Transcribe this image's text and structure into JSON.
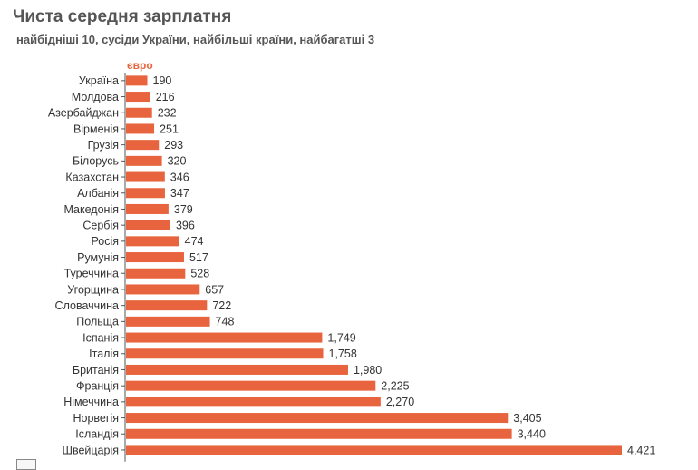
{
  "header": {
    "title": "Чиста середня зарплатня",
    "subtitle": "найбідніші 10, сусіди України, найбільші країни, найбагатші 3"
  },
  "chart_data": {
    "type": "bar",
    "orientation": "horizontal",
    "unit_label": "євро",
    "categories": [
      "Україна",
      "Молдова",
      "Азербайджан",
      "Вірменія",
      "Грузія",
      "Білорусь",
      "Казахстан",
      "Албанія",
      "Македонія",
      "Сербія",
      "Росія",
      "Румунія",
      "Туреччина",
      "Угорщина",
      "Словаччина",
      "Польща",
      "Іспанія",
      "Італія",
      "Британія",
      "Франція",
      "Німеччина",
      "Норвегія",
      "Ісландія",
      "Швейцарія"
    ],
    "values": [
      190,
      216,
      232,
      251,
      293,
      320,
      346,
      347,
      379,
      396,
      474,
      517,
      528,
      657,
      722,
      748,
      1749,
      1758,
      1980,
      2225,
      2270,
      3405,
      3440,
      4421
    ],
    "value_labels": [
      "190",
      "216",
      "232",
      "251",
      "293",
      "320",
      "346",
      "347",
      "379",
      "396",
      "474",
      "517",
      "528",
      "657",
      "722",
      "748",
      "1,749",
      "1,758",
      "1,980",
      "2,225",
      "2,270",
      "3,405",
      "3,440",
      "4,421"
    ],
    "bar_color": "#e8643e",
    "grid": false,
    "legend": "none"
  }
}
